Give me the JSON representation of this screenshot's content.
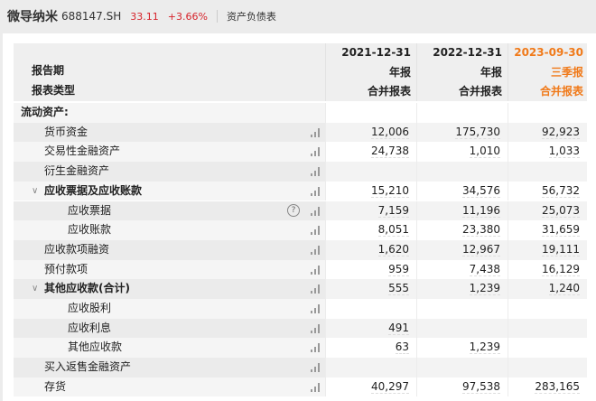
{
  "header": {
    "name": "微导纳米",
    "code": "688147.SH",
    "price": "33.11",
    "change": "+3.66%",
    "tab": "资产负债表"
  },
  "table": {
    "labels": {
      "period": "报告期",
      "type": "报表类型"
    },
    "columns": [
      {
        "date": "2021-12-31",
        "period": "年报",
        "type": "合并报表",
        "highlight": false
      },
      {
        "date": "2022-12-31",
        "period": "年报",
        "type": "合并报表",
        "highlight": false
      },
      {
        "date": "2023-09-30",
        "period": "三季报",
        "type": "合并报表",
        "highlight": true
      }
    ],
    "highlight_color": "#f07a1a",
    "rows": [
      {
        "label": "流动资产:",
        "level": 0,
        "bold": true,
        "section": true,
        "values": [
          "",
          "",
          ""
        ]
      },
      {
        "label": "货币资金",
        "level": 1,
        "values": [
          "12,006",
          "175,730",
          "92,923"
        ]
      },
      {
        "label": "交易性金融资产",
        "level": 1,
        "values": [
          "24,738",
          "1,010",
          "1,033"
        ]
      },
      {
        "label": "衍生金融资产",
        "level": 1,
        "values": [
          "",
          "",
          ""
        ]
      },
      {
        "label": "应收票据及应收账款",
        "level": 1,
        "bold": true,
        "expanded": true,
        "values": [
          "15,210",
          "34,576",
          "56,732"
        ]
      },
      {
        "label": "应收票据",
        "level": 2,
        "help": true,
        "values": [
          "7,159",
          "11,196",
          "25,073"
        ]
      },
      {
        "label": "应收账款",
        "level": 2,
        "values": [
          "8,051",
          "23,380",
          "31,659"
        ]
      },
      {
        "label": "应收款项融资",
        "level": 1,
        "values": [
          "1,620",
          "12,967",
          "19,111"
        ]
      },
      {
        "label": "预付款项",
        "level": 1,
        "values": [
          "959",
          "7,438",
          "16,129"
        ]
      },
      {
        "label": "其他应收款(合计)",
        "level": 1,
        "bold": true,
        "expanded": true,
        "values": [
          "555",
          "1,239",
          "1,240"
        ]
      },
      {
        "label": "应收股利",
        "level": 2,
        "values": [
          "",
          "",
          ""
        ]
      },
      {
        "label": "应收利息",
        "level": 2,
        "values": [
          "491",
          "",
          ""
        ]
      },
      {
        "label": "其他应收款",
        "level": 2,
        "values": [
          "63",
          "1,239",
          ""
        ]
      },
      {
        "label": "买入返售金融资产",
        "level": 1,
        "values": [
          "",
          "",
          ""
        ]
      },
      {
        "label": "存货",
        "level": 1,
        "values": [
          "40,297",
          "97,538",
          "283,165"
        ]
      }
    ]
  }
}
